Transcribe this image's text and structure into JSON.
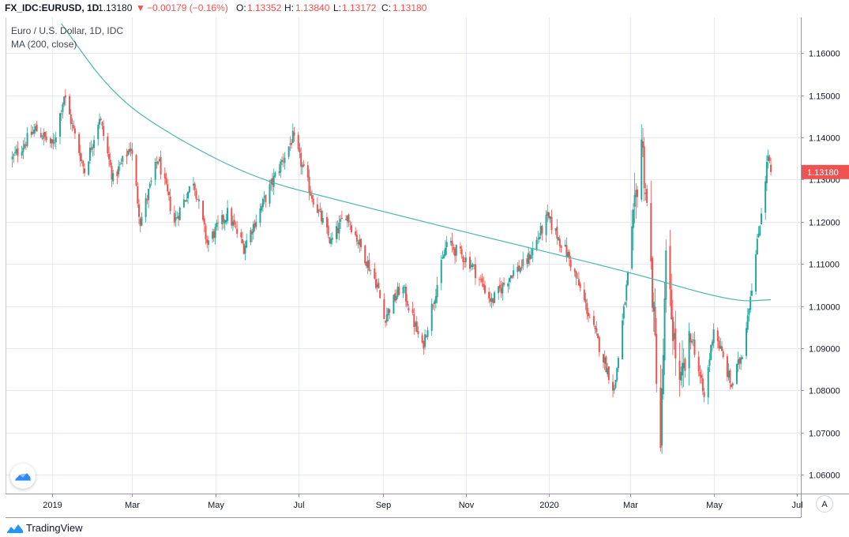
{
  "header": {
    "symbol": "FX_IDC:EURUSD, 1D",
    "last": "1.13180",
    "change": "−0.00179 (−0.16%)",
    "o_label": "O:",
    "o_value": "1.13352",
    "h_label": "H:",
    "h_value": "1.13840",
    "l_label": "L:",
    "l_value": "1.13172",
    "c_label": "C:",
    "c_value": "1.13180"
  },
  "legend": {
    "title": "Euro / U.S. Dollar, 1D, IDC",
    "ma": "MA (200, close)"
  },
  "footer": {
    "brand": "TradingView"
  },
  "scale_button": "A",
  "colors": {
    "up": "#26a69a",
    "down": "#ef5350",
    "ma": "#4db6ac",
    "grid": "#e6eaf0",
    "price_tag": "#ef5350"
  },
  "chart_data": {
    "type": "candlestick",
    "title": "Euro / U.S. Dollar, 1D, IDC",
    "x_ticks": [
      "2019",
      "Mar",
      "May",
      "Jul",
      "Sep",
      "Nov",
      "2020",
      "Mar",
      "May",
      "Jul"
    ],
    "y_ticks": [
      "1.16000",
      "1.15000",
      "1.14000",
      "1.13000",
      "1.12000",
      "1.11000",
      "1.10000",
      "1.09000",
      "1.08000",
      "1.07000",
      "1.06000"
    ],
    "ylim": [
      1.0555,
      1.1685
    ],
    "last_price": "1.13180",
    "close_path": [
      [
        "2018-12-03",
        1.135
      ],
      [
        "2018-12-20",
        1.142
      ],
      [
        "2019-01-02",
        1.138
      ],
      [
        "2019-01-10",
        1.15
      ],
      [
        "2019-01-25",
        1.132
      ],
      [
        "2019-02-05",
        1.145
      ],
      [
        "2019-02-15",
        1.13
      ],
      [
        "2019-02-28",
        1.138
      ],
      [
        "2019-03-07",
        1.12
      ],
      [
        "2019-03-20",
        1.135
      ],
      [
        "2019-04-01",
        1.12
      ],
      [
        "2019-04-15",
        1.13
      ],
      [
        "2019-04-25",
        1.115
      ],
      [
        "2019-05-10",
        1.122
      ],
      [
        "2019-05-22",
        1.114
      ],
      [
        "2019-06-10",
        1.128
      ],
      [
        "2019-06-27",
        1.14
      ],
      [
        "2019-07-10",
        1.127
      ],
      [
        "2019-07-25",
        1.115
      ],
      [
        "2019-08-05",
        1.122
      ],
      [
        "2019-08-28",
        1.105
      ],
      [
        "2019-09-02",
        1.097
      ],
      [
        "2019-09-15",
        1.105
      ],
      [
        "2019-09-30",
        1.09
      ],
      [
        "2019-10-18",
        1.115
      ],
      [
        "2019-11-05",
        1.11
      ],
      [
        "2019-11-20",
        1.101
      ],
      [
        "2019-12-05",
        1.108
      ],
      [
        "2019-12-15",
        1.11
      ],
      [
        "2019-12-31",
        1.121
      ],
      [
        "2020-01-15",
        1.112
      ],
      [
        "2020-01-25",
        1.103
      ],
      [
        "2020-02-18",
        1.08
      ],
      [
        "2020-03-02",
        1.115
      ],
      [
        "2020-03-09",
        1.14
      ],
      [
        "2020-03-15",
        1.115
      ],
      [
        "2020-03-23",
        1.067
      ],
      [
        "2020-03-27",
        1.11
      ],
      [
        "2020-04-06",
        1.08
      ],
      [
        "2020-04-15",
        1.093
      ],
      [
        "2020-04-24",
        1.078
      ],
      [
        "2020-05-01",
        1.095
      ],
      [
        "2020-05-14",
        1.081
      ],
      [
        "2020-05-22",
        1.089
      ],
      [
        "2020-06-01",
        1.112
      ],
      [
        "2020-06-10",
        1.136
      ],
      [
        "2020-06-12",
        1.1318
      ]
    ],
    "ma_series": {
      "name": "MA (200, close)",
      "points": [
        [
          "2019-01-08",
          1.167
        ],
        [
          "2019-02-15",
          1.15
        ],
        [
          "2019-04-01",
          1.14
        ],
        [
          "2019-06-01",
          1.13
        ],
        [
          "2019-08-01",
          1.125
        ],
        [
          "2019-10-01",
          1.12
        ],
        [
          "2019-12-15",
          1.114
        ],
        [
          "2020-03-01",
          1.108
        ],
        [
          "2020-05-15",
          1.101
        ],
        [
          "2020-06-12",
          1.1015
        ]
      ]
    }
  }
}
